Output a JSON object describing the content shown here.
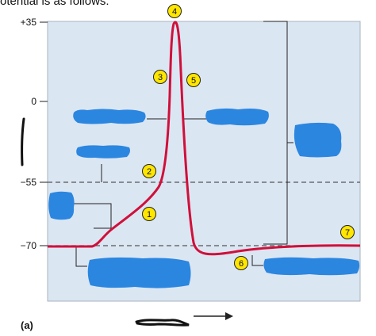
{
  "header_fragment": "otential is as follows:",
  "panel_label": "(a)",
  "axis": {
    "ticks": [
      {
        "label": "+35",
        "mV": 35
      },
      {
        "label": "0",
        "mV": 0
      },
      {
        "label": "−55",
        "mV": -55
      },
      {
        "label": "−70",
        "mV": -70
      }
    ],
    "reference_lines_mV": [
      -55,
      -70
    ]
  },
  "markers": [
    {
      "label": "1"
    },
    {
      "label": "2"
    },
    {
      "label": "3"
    },
    {
      "label": "4"
    },
    {
      "label": "5"
    },
    {
      "label": "6"
    },
    {
      "label": "7"
    }
  ],
  "colors": {
    "panel_background": "#dbe6f3",
    "trace": "#d0103a",
    "marker_fill": "#ffe600",
    "redaction_blue": "#2b86e0",
    "ink": "#111111"
  },
  "icons": {
    "time_arrow": "right-arrow-icon",
    "scribbles": "scribble-icon"
  }
}
